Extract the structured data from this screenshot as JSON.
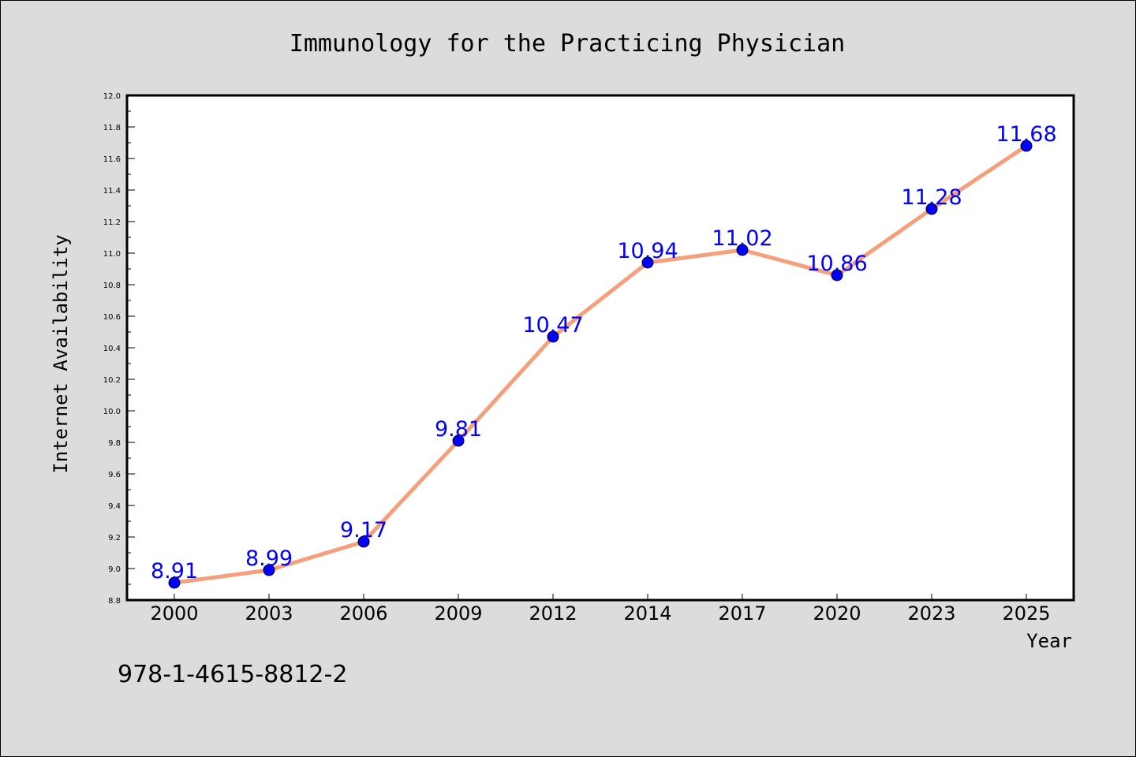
{
  "chart_data": {
    "type": "line",
    "title": "Immunology for the Practicing Physician",
    "xlabel": "Year",
    "ylabel": "Internet Availability",
    "categories": [
      "2000",
      "2003",
      "2006",
      "2009",
      "2012",
      "2014",
      "2017",
      "2020",
      "2023",
      "2025"
    ],
    "series": [
      {
        "values": [
          8.91,
          8.99,
          9.17,
          9.81,
          10.47,
          10.94,
          11.02,
          10.86,
          11.28,
          11.68
        ],
        "line_color": "#f4a07c",
        "marker_color": "#0000ff"
      }
    ],
    "data_labels": [
      "8.91",
      "8.99",
      "9.17",
      "9.81",
      "10.47",
      "10.94",
      "11.02",
      "10.86",
      "11.28",
      "11.68"
    ],
    "ylim": [
      8.8,
      12.0
    ],
    "y_ticks": [
      "8.8",
      "9.0",
      "9.2",
      "9.4",
      "9.6",
      "9.8",
      "10.0",
      "10.2",
      "10.4",
      "10.6",
      "10.8",
      "11.0",
      "11.2",
      "11.4",
      "11.6",
      "11.8",
      "12.0"
    ],
    "grid": false,
    "legend": "none"
  },
  "footnote": "978-1-4615-8812-2",
  "colors": {
    "background": "#dcdcdc",
    "plot_background": "#ffffff",
    "line": "#f4a07c",
    "marker": "#0000ff",
    "data_label": "#0000ff"
  }
}
